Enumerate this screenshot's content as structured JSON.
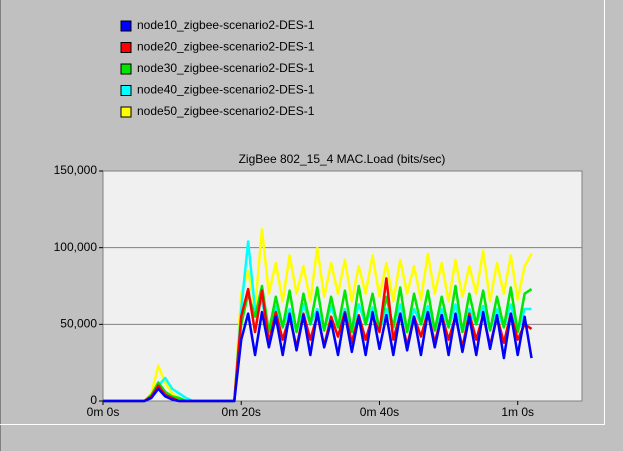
{
  "chart_data": {
    "type": "line",
    "title": "ZigBee 802_15_4 MAC.Load (bits/sec)",
    "x": [
      0,
      1,
      2,
      3,
      4,
      5,
      6,
      7,
      8,
      9,
      10,
      11,
      12,
      13,
      14,
      15,
      16,
      17,
      18,
      19,
      20,
      21,
      22,
      23,
      24,
      25,
      26,
      27,
      28,
      29,
      30,
      31,
      32,
      33,
      34,
      35,
      36,
      37,
      38,
      39,
      40,
      41,
      42,
      43,
      44,
      45,
      46,
      47,
      48,
      49,
      50,
      51,
      52,
      53,
      54,
      55,
      56,
      57,
      58,
      59,
      60,
      61,
      62
    ],
    "series": [
      {
        "name": "node10_zigbee-scenario2-DES-1",
        "color": "#0000ff",
        "values": [
          0,
          0,
          0,
          0,
          0,
          0,
          0,
          2000,
          8000,
          3000,
          1000,
          0,
          0,
          0,
          0,
          0,
          0,
          0,
          0,
          0,
          40000,
          57000,
          30000,
          58000,
          35000,
          55000,
          30000,
          57000,
          33000,
          56000,
          30000,
          58000,
          35000,
          52000,
          30000,
          57000,
          32000,
          55000,
          30000,
          58000,
          34000,
          56000,
          30000,
          57000,
          33000,
          55000,
          30000,
          58000,
          35000,
          56000,
          30000,
          57000,
          32000,
          55000,
          30000,
          58000,
          34000,
          56000,
          28000,
          57000,
          30000,
          55000,
          28000
        ]
      },
      {
        "name": "node20_zigbee-scenario2-DES-1",
        "color": "#ff0000",
        "values": [
          0,
          0,
          0,
          0,
          0,
          0,
          0,
          3000,
          10000,
          4000,
          2000,
          0,
          0,
          0,
          0,
          0,
          0,
          0,
          0,
          0,
          55000,
          73000,
          45000,
          72000,
          38000,
          58000,
          40000,
          55000,
          35000,
          57000,
          40000,
          56000,
          36000,
          55000,
          42000,
          58000,
          38000,
          56000,
          40000,
          55000,
          45000,
          80000,
          40000,
          57000,
          36000,
          55000,
          42000,
          58000,
          38000,
          56000,
          40000,
          55000,
          35000,
          57000,
          40000,
          56000,
          36000,
          55000,
          38000,
          57000,
          40000,
          50000,
          47000
        ]
      },
      {
        "name": "node30_zigbee-scenario2-DES-1",
        "color": "#00e600",
        "values": [
          0,
          0,
          0,
          0,
          0,
          0,
          0,
          4000,
          12000,
          6000,
          3000,
          2000,
          0,
          0,
          0,
          0,
          0,
          0,
          0,
          0,
          50000,
          70000,
          55000,
          75000,
          45000,
          68000,
          48000,
          72000,
          45000,
          70000,
          50000,
          74000,
          46000,
          68000,
          48000,
          72000,
          45000,
          75000,
          50000,
          70000,
          46000,
          68000,
          48000,
          74000,
          45000,
          70000,
          50000,
          72000,
          46000,
          68000,
          48000,
          75000,
          45000,
          70000,
          50000,
          72000,
          46000,
          68000,
          48000,
          74000,
          45000,
          70000,
          73000
        ]
      },
      {
        "name": "node40_zigbee-scenario2-DES-1",
        "color": "#00ffff",
        "values": [
          0,
          0,
          0,
          0,
          0,
          0,
          0,
          3000,
          10000,
          15000,
          8000,
          5000,
          2000,
          0,
          0,
          0,
          0,
          0,
          0,
          0,
          60000,
          104000,
          60000,
          65000,
          45000,
          62000,
          48000,
          60000,
          45000,
          63000,
          50000,
          60000,
          46000,
          62000,
          48000,
          60000,
          45000,
          63000,
          50000,
          61000,
          46000,
          60000,
          48000,
          63000,
          45000,
          60000,
          50000,
          62000,
          46000,
          60000,
          48000,
          63000,
          45000,
          60000,
          50000,
          62000,
          46000,
          60000,
          48000,
          63000,
          45000,
          60000,
          60000
        ]
      },
      {
        "name": "node50_zigbee-scenario2-DES-1",
        "color": "#ffff00",
        "values": [
          0,
          0,
          0,
          0,
          0,
          0,
          0,
          5000,
          23000,
          12000,
          5000,
          2000,
          0,
          0,
          0,
          0,
          0,
          0,
          0,
          0,
          70000,
          85000,
          60000,
          112000,
          70000,
          90000,
          65000,
          95000,
          70000,
          88000,
          65000,
          100000,
          68000,
          90000,
          70000,
          92000,
          65000,
          88000,
          70000,
          95000,
          68000,
          90000,
          65000,
          92000,
          70000,
          88000,
          66000,
          96000,
          70000,
          90000,
          65000,
          92000,
          68000,
          88000,
          70000,
          98000,
          65000,
          90000,
          70000,
          95000,
          66000,
          88000,
          96000
        ]
      }
    ],
    "xlim": [
      0,
      69.3
    ],
    "xticks": [
      {
        "value": 0,
        "label": "0m 0s"
      },
      {
        "value": 20,
        "label": "0m 20s"
      },
      {
        "value": 40,
        "label": "0m 40s"
      },
      {
        "value": 60,
        "label": "1m 0s"
      }
    ],
    "ylim": [
      0,
      150000
    ],
    "yticks": [
      0,
      {
        "value": 50000,
        "label": "50,000"
      },
      {
        "value": 100000,
        "label": "100,000"
      },
      {
        "value": 150000,
        "label": "150,000"
      }
    ],
    "grid": true
  }
}
